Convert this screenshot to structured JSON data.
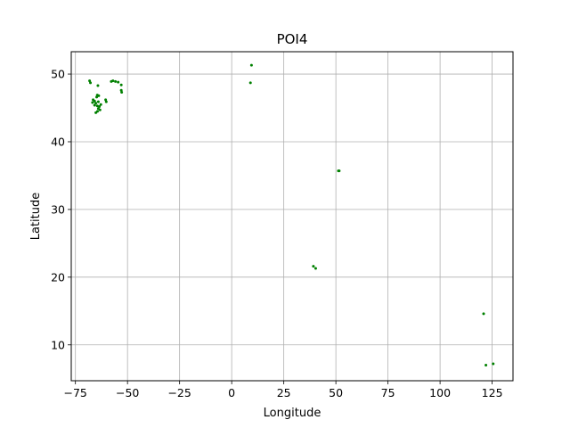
{
  "chart_data": {
    "type": "scatter",
    "title": "POI4",
    "xlabel": "Longitude",
    "ylabel": "Latitude",
    "xlim": [
      -77,
      135
    ],
    "ylim": [
      4.7,
      53.3
    ],
    "xticks": [
      -75,
      -50,
      -25,
      0,
      25,
      50,
      75,
      100,
      125
    ],
    "xtick_labels": [
      "−75",
      "−50",
      "−25",
      "0",
      "25",
      "50",
      "75",
      "100",
      "125"
    ],
    "yticks": [
      10,
      20,
      30,
      40,
      50
    ],
    "ytick_labels": [
      "10",
      "20",
      "30",
      "40",
      "50"
    ],
    "grid": true,
    "legend": "none",
    "color": "#008000",
    "points": [
      {
        "x": -68.2,
        "y": 49.0
      },
      {
        "x": -67.8,
        "y": 48.7
      },
      {
        "x": -64.2,
        "y": 48.3
      },
      {
        "x": -57.8,
        "y": 48.9
      },
      {
        "x": -57.0,
        "y": 49.0
      },
      {
        "x": -55.8,
        "y": 48.9
      },
      {
        "x": -54.5,
        "y": 48.8
      },
      {
        "x": -53.0,
        "y": 48.4
      },
      {
        "x": -53.0,
        "y": 47.6
      },
      {
        "x": -52.8,
        "y": 47.3
      },
      {
        "x": -64.5,
        "y": 46.9
      },
      {
        "x": -63.8,
        "y": 46.8
      },
      {
        "x": -64.8,
        "y": 46.6
      },
      {
        "x": -66.5,
        "y": 46.2
      },
      {
        "x": -65.8,
        "y": 46.0
      },
      {
        "x": -66.8,
        "y": 45.8
      },
      {
        "x": -65.2,
        "y": 45.7
      },
      {
        "x": -64.0,
        "y": 45.9
      },
      {
        "x": -60.5,
        "y": 46.2
      },
      {
        "x": -60.2,
        "y": 45.9
      },
      {
        "x": -65.8,
        "y": 45.4
      },
      {
        "x": -64.5,
        "y": 45.3
      },
      {
        "x": -63.5,
        "y": 45.2
      },
      {
        "x": -62.8,
        "y": 45.5
      },
      {
        "x": -64.0,
        "y": 44.9
      },
      {
        "x": -63.2,
        "y": 44.7
      },
      {
        "x": -64.4,
        "y": 44.5
      },
      {
        "x": -65.2,
        "y": 44.3
      },
      {
        "x": 9.5,
        "y": 51.3
      },
      {
        "x": 9.0,
        "y": 48.7
      },
      {
        "x": 51.2,
        "y": 35.7
      },
      {
        "x": 51.6,
        "y": 35.7
      },
      {
        "x": 39.2,
        "y": 21.6
      },
      {
        "x": 40.3,
        "y": 21.3
      },
      {
        "x": 120.9,
        "y": 14.6
      },
      {
        "x": 122.0,
        "y": 7.0
      },
      {
        "x": 125.5,
        "y": 7.2
      }
    ]
  }
}
